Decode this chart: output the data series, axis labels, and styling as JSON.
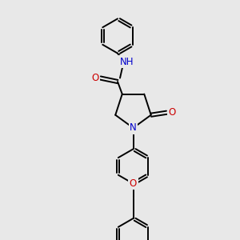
{
  "background_color": "#e8e8e8",
  "atom_colors": {
    "C": "#000000",
    "N": "#0000cc",
    "O": "#cc0000",
    "H": "#008080"
  },
  "bond_color": "#000000",
  "bond_width": 1.4,
  "figsize": [
    3.0,
    3.0
  ],
  "dpi": 100,
  "xlim": [
    0,
    10
  ],
  "ylim": [
    0,
    10
  ]
}
